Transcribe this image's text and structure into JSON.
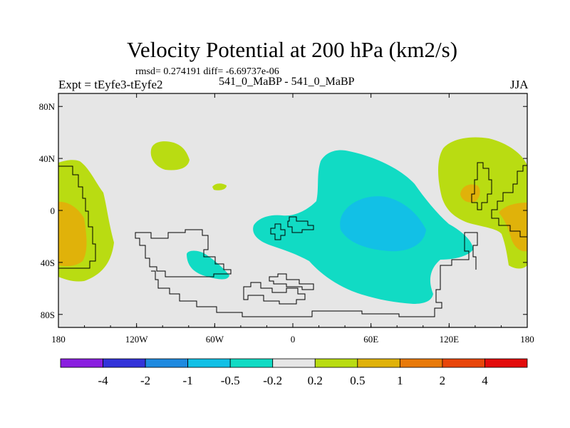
{
  "chart_data": {
    "type": "contour-map",
    "title": "Velocity Potential at 200 hPa (km2/s)",
    "stats": {
      "rmsd_label": "rmsd= 0.274191",
      "diff_label": "diff= -6.69737e-06"
    },
    "experiment_label": "Expt = tEyfe3-tEyfe2",
    "case_label": "541_0_MaBP - 541_0_MaBP",
    "season_label": "JJA",
    "x_axis": {
      "range": [
        -180,
        180
      ],
      "ticks": [
        -180,
        -120,
        -60,
        0,
        60,
        120,
        180
      ],
      "tick_labels": [
        "180",
        "120W",
        "60W",
        "0",
        "60E",
        "120E",
        "180"
      ]
    },
    "y_axis": {
      "range": [
        -90,
        90
      ],
      "ticks": [
        80,
        40,
        0,
        -40,
        -80
      ],
      "tick_labels": [
        "80N",
        "40N",
        "0",
        "40S",
        "80S"
      ]
    },
    "colorbar": {
      "levels": [
        "-4",
        "-2",
        "-1",
        "-0.5",
        "-0.2",
        "0.2",
        "0.5",
        "1",
        "2",
        "4"
      ],
      "colors": [
        "#8a1fe0",
        "#3333d9",
        "#1f8ae0",
        "#12c0e6",
        "#11dbc4",
        "#e6e6e6",
        "#b9dc12",
        "#e0b20a",
        "#e87a0a",
        "#e8460a",
        "#e30c0c"
      ]
    },
    "regions": [
      {
        "name": "region-dateline-positive",
        "level": "0.2 to 0.5",
        "lon": -180,
        "lat": 20
      },
      {
        "name": "region-dateline-orange",
        "level": "0.5 to 1",
        "lon": -172,
        "lat": -20
      },
      {
        "name": "region-npacific-positive",
        "level": "0.2 to 0.5",
        "lon": -95,
        "lat": 45
      },
      {
        "name": "region-small-positive",
        "level": "0.2 to 0.5",
        "lon": -57,
        "lat": 19
      },
      {
        "name": "region-south-america-negative",
        "level": "-0.5 to -0.2",
        "lon": -70,
        "lat": -40
      },
      {
        "name": "region-africa-asia-negative",
        "level": "-0.5 to -0.2",
        "lon": 60,
        "lat": -10
      },
      {
        "name": "region-indian-ocean-min",
        "level": "-1 to -0.5",
        "lon": 60,
        "lat": -10
      },
      {
        "name": "region-east-positive",
        "level": "0.2 to 0.5",
        "lon": 150,
        "lat": 20
      },
      {
        "name": "region-east-orange-1",
        "level": "0.5 to 1",
        "lon": 138,
        "lat": 15
      },
      {
        "name": "region-east-orange-2",
        "level": "0.5 to 1",
        "lon": 170,
        "lat": -20
      }
    ]
  }
}
